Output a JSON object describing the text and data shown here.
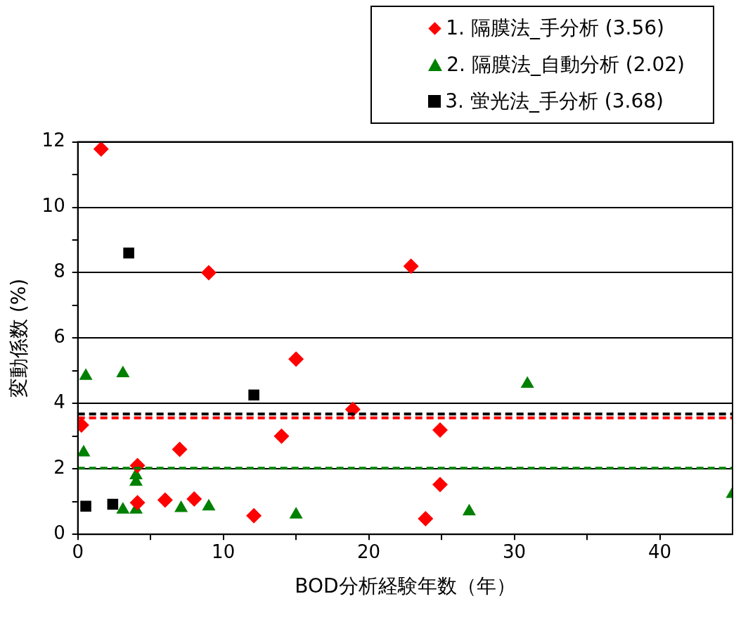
{
  "chart_data": {
    "type": "scatter",
    "xlabel": "BOD分析経験年数（年）",
    "ylabel": "変動係数 (%)",
    "xlim": [
      0,
      45
    ],
    "xticks": [
      0,
      {
        "value": 5,
        "label": null
      },
      10,
      {
        "value": 15,
        "label": null
      },
      20,
      {
        "value": 25,
        "label": null
      },
      30,
      {
        "value": 35,
        "label": null
      },
      40
    ],
    "ylim": [
      0,
      12
    ],
    "yticks": [
      0,
      {
        "value": 1,
        "label": null
      },
      2,
      {
        "value": 3,
        "label": null
      },
      4,
      {
        "value": 5,
        "label": null
      },
      6,
      {
        "value": 7,
        "label": null
      },
      8,
      {
        "value": 9,
        "label": null
      },
      10,
      {
        "value": 11,
        "label": null
      },
      12
    ],
    "grid": "y",
    "legend": "top right",
    "series": [
      {
        "name": "1. 隔膜法_手分析 (3.56)",
        "color": "#ff0000",
        "marker": "diamond",
        "x": [
          0.25,
          1.6,
          9.0,
          4.1,
          4.1,
          6.0,
          7.0,
          8.0,
          12.1,
          14.0,
          15.0,
          18.9,
          22.9,
          24.9,
          24.9,
          23.9
        ],
        "values": [
          3.34,
          11.78,
          8.0,
          2.1,
          0.97,
          1.05,
          2.6,
          1.08,
          0.57,
          3.0,
          5.36,
          3.82,
          8.2,
          3.19,
          1.52,
          0.48
        ]
      },
      {
        "name": "2. 隔膜法_自動分析 (2.02)",
        "color": "#008000",
        "marker": "triangle",
        "x": [
          0.55,
          3.1,
          0.4,
          4.0,
          4.0,
          3.1,
          4.0,
          7.1,
          9.0,
          15.0,
          26.9,
          30.9,
          45
        ],
        "values": [
          4.84,
          4.92,
          2.5,
          1.8,
          1.6,
          0.75,
          0.75,
          0.8,
          0.85,
          0.6,
          0.7,
          4.6,
          1.23
        ]
      },
      {
        "name": "3. 蛍光法_手分析 (3.68)",
        "color": "#000000",
        "marker": "square",
        "x": [
          0.55,
          2.4,
          3.5,
          12.1
        ],
        "values": [
          0.86,
          0.92,
          8.6,
          4.26
        ]
      }
    ],
    "ref_lines": [
      {
        "axis": "y",
        "value": 3.68,
        "color": "#000000",
        "line_style": "dashed"
      },
      {
        "axis": "y",
        "value": 3.56,
        "color": "#ff0000",
        "line_style": "dashed"
      },
      {
        "axis": "y",
        "value": 2.02,
        "color": "#008000",
        "line_style": "dashed"
      }
    ]
  }
}
